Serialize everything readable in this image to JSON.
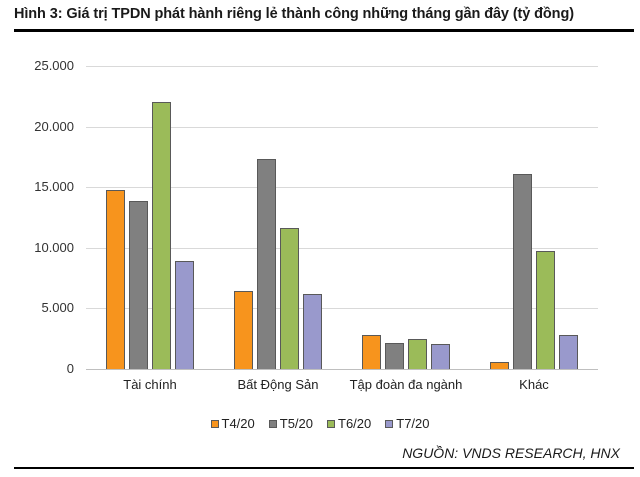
{
  "title": "Hình 3: Giá trị TPDN phát hành riêng lẻ thành công những tháng gần đây (tỷ đồng)",
  "source": "NGUỒN: VNDS RESEARCH, HNX",
  "chart_data": {
    "type": "bar",
    "title": "Giá trị TPDN phát hành riêng lẻ thành công những tháng gần đây (tỷ đồng)",
    "xlabel": "",
    "ylabel": "",
    "ylim": [
      0,
      25000
    ],
    "yticks": [
      0,
      5000,
      10000,
      15000,
      20000,
      25000
    ],
    "ytick_labels": [
      "0",
      "5.000",
      "10.000",
      "15.000",
      "20.000",
      "25.000"
    ],
    "grid": true,
    "legend_position": "bottom",
    "categories": [
      "Tài chính",
      "Bất Động Sản",
      "Tập đoàn đa ngành",
      "Khác"
    ],
    "series": [
      {
        "name": "T4/20",
        "color": "#F7941D",
        "values": [
          14750,
          6450,
          2800,
          600
        ]
      },
      {
        "name": "T5/20",
        "color": "#808080",
        "values": [
          13850,
          17300,
          2150,
          16100
        ]
      },
      {
        "name": "T6/20",
        "color": "#9BBB59",
        "values": [
          22000,
          11650,
          2500,
          9750
        ]
      },
      {
        "name": "T7/20",
        "color": "#9999CC",
        "values": [
          8900,
          6200,
          2050,
          2800
        ]
      }
    ]
  }
}
